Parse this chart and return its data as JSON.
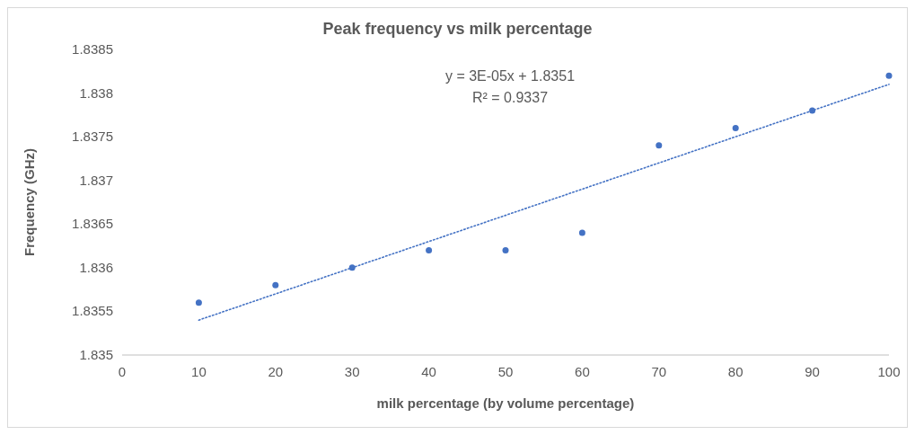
{
  "chart_data": {
    "type": "scatter",
    "title": "Peak frequency vs milk percentage",
    "xlabel": "milk percentage (by volume percentage)",
    "ylabel": "Frequency (GHz)",
    "annotations": [
      "y = 3E-05x + 1.8351",
      "R² = 0.9337"
    ],
    "xlim": [
      0,
      100
    ],
    "xticks": [
      0,
      10,
      20,
      30,
      40,
      50,
      60,
      70,
      80,
      90,
      100
    ],
    "ylim": [
      1.835,
      1.8385
    ],
    "yticks": [
      1.835,
      1.8355,
      1.836,
      1.8365,
      1.837,
      1.8375,
      1.838,
      1.8385
    ],
    "grid": false,
    "series": [
      {
        "marker": "circle",
        "color": "#4472c4",
        "x": [
          10,
          20,
          30,
          40,
          50,
          60,
          70,
          80,
          90,
          100
        ],
        "values": [
          1.8356,
          1.8358,
          1.836,
          1.8362,
          1.8362,
          1.8364,
          1.8374,
          1.8376,
          1.8378,
          1.8382
        ]
      },
      {
        "type": "line",
        "color": "#4472c4",
        "line_style": "dotted",
        "x": [
          10,
          100
        ],
        "values": [
          1.8354,
          1.8381
        ]
      }
    ]
  }
}
